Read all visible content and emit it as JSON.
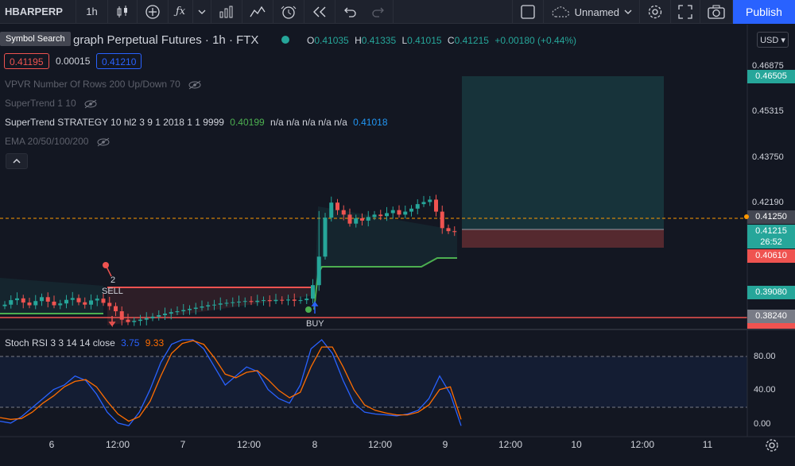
{
  "toolbar": {
    "symbol": "HBARPERP",
    "interval": "1h",
    "layout_name": "Unnamed",
    "publish_label": "Publish"
  },
  "tooltip": "Symbol Search",
  "header": {
    "title": "graph Perpetual Futures · 1h · FTX",
    "open_label": "O",
    "open": "0.41035",
    "high_label": "H",
    "high": "0.41335",
    "low_label": "L",
    "low": "0.41015",
    "close_label": "C",
    "close": "0.41215",
    "change": "+0.00180 (+0.44%)"
  },
  "chips": {
    "bid": "0.41195",
    "spread": "0.00015",
    "ask": "0.41210"
  },
  "indicators": {
    "vpvr": "VPVR Number Of Rows 200 Up/Down 70",
    "supertrend": "SuperTrend 1 10",
    "strategy_name": "SuperTrend STRATEGY 10 hl2 3 9 1 2018 1 1 9999",
    "strategy_v1": "0.40199",
    "strategy_na": "n/a n/a n/a n/a n/a",
    "strategy_v2": "0.41018",
    "ema": "EMA 20/50/100/200"
  },
  "stoch": {
    "label": "Stoch RSI 3 3 14 14 close",
    "k": "3.75",
    "d": "9.33"
  },
  "currency": "USD",
  "price_axis": [
    "0.46875",
    "0.45315",
    "0.43750",
    "0.42190"
  ],
  "price_labels": {
    "tp": "0.46505",
    "alert": "0.41250",
    "last": "0.41215",
    "countdown": "26:52",
    "sl": "0.40610",
    "st": "0.39080",
    "low_line": "0.38240"
  },
  "osc_axis": [
    "80.00",
    "40.00",
    "0.00"
  ],
  "time_axis": [
    "6",
    "12:00",
    "7",
    "12:00",
    "8",
    "12:00",
    "9",
    "12:00",
    "10",
    "12:00",
    "11"
  ],
  "signals": {
    "sell": "SELL",
    "buy": "BUY",
    "sell_count": "2"
  },
  "colors": {
    "bg": "#131722",
    "up": "#26a69a",
    "down": "#ef5350",
    "stop": "#ef5350",
    "target": "#26a69a",
    "stoch_k": "#2962ff",
    "stoch_d": "#ff6d00"
  },
  "chart_data": {
    "type": "line",
    "title": "",
    "candles_close": [
      0.388,
      0.3895,
      0.3901,
      0.3887,
      0.3878,
      0.3892,
      0.3905,
      0.389,
      0.3878,
      0.3884,
      0.3896,
      0.3902,
      0.3888,
      0.388,
      0.3894,
      0.39,
      0.3886,
      0.3875,
      0.3858,
      0.383,
      0.3822,
      0.3826,
      0.383,
      0.3835,
      0.384,
      0.3845,
      0.385,
      0.3855,
      0.3858,
      0.3862,
      0.3866,
      0.387,
      0.3874,
      0.3878,
      0.388,
      0.3884,
      0.3886,
      0.3888,
      0.389,
      0.3892,
      0.3889,
      0.3893,
      0.3895,
      0.3892,
      0.3896,
      0.3894,
      0.3897,
      0.3893,
      0.3895,
      0.39,
      0.3945,
      0.404,
      0.417,
      0.422,
      0.4195,
      0.418,
      0.415,
      0.4168,
      0.416,
      0.4172,
      0.418,
      0.4175,
      0.4185,
      0.4195,
      0.418,
      0.419,
      0.42,
      0.4215,
      0.4222,
      0.423,
      0.419,
      0.4135,
      0.4125,
      0.4122
    ],
    "ylim": [
      0.38,
      0.471
    ],
    "stoch_k": [
      10,
      8,
      15,
      25,
      35,
      45,
      50,
      60,
      55,
      40,
      20,
      8,
      5,
      20,
      45,
      75,
      95,
      100,
      100,
      90,
      70,
      50,
      60,
      70,
      65,
      45,
      35,
      30,
      50,
      90,
      100,
      85,
      55,
      30,
      20,
      18,
      17,
      16,
      18,
      22,
      35,
      60,
      40,
      5
    ],
    "stoch_d": [
      14,
      12,
      13,
      20,
      30,
      38,
      48,
      54,
      56,
      48,
      32,
      18,
      10,
      15,
      32,
      60,
      85,
      96,
      99,
      95,
      80,
      62,
      58,
      64,
      66,
      56,
      44,
      36,
      42,
      70,
      92,
      92,
      70,
      45,
      28,
      22,
      19,
      17,
      17,
      20,
      28,
      45,
      48,
      12
    ],
    "stoch_ylim": [
      0,
      100
    ]
  }
}
